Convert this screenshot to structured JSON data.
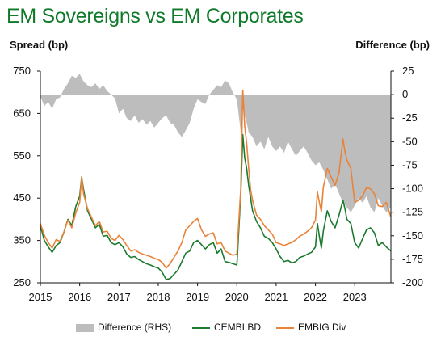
{
  "chart_data": {
    "type": "line",
    "title": "EM Sovereigns vs EM Corporates",
    "ylabel": "Spread (bp)",
    "y2label": "Difference (bp)",
    "ylim": [
      250,
      750
    ],
    "y2lim": [
      -200,
      25
    ],
    "xlim": [
      2015.0,
      2023.92
    ],
    "yticks": [
      250,
      350,
      450,
      550,
      650,
      750
    ],
    "y2ticks": [
      25,
      0,
      -25,
      -50,
      -75,
      -100,
      -125,
      -150,
      -175,
      -200
    ],
    "xticks": [
      "2015",
      "2016",
      "2017",
      "2018",
      "2019",
      "2020",
      "2021",
      "2022",
      "2023"
    ],
    "legend_position": "bottom",
    "series": [
      {
        "name": "Difference (RHS)",
        "kind": "area",
        "axis": "right",
        "color": "#bdbdbd",
        "x": [
          2015.0,
          2015.1,
          2015.2,
          2015.3,
          2015.4,
          2015.5,
          2015.6,
          2015.7,
          2015.8,
          2015.9,
          2016.0,
          2016.1,
          2016.2,
          2016.3,
          2016.4,
          2016.5,
          2016.6,
          2016.7,
          2016.8,
          2016.9,
          2017.0,
          2017.1,
          2017.2,
          2017.3,
          2017.4,
          2017.5,
          2017.6,
          2017.7,
          2017.8,
          2017.9,
          2018.0,
          2018.1,
          2018.2,
          2018.3,
          2018.4,
          2018.5,
          2018.6,
          2018.7,
          2018.8,
          2018.9,
          2019.0,
          2019.1,
          2019.2,
          2019.3,
          2019.4,
          2019.5,
          2019.6,
          2019.7,
          2019.8,
          2019.9,
          2020.0,
          2020.1,
          2020.15,
          2020.25,
          2020.3,
          2020.4,
          2020.5,
          2020.6,
          2020.7,
          2020.8,
          2020.9,
          2021.0,
          2021.1,
          2021.2,
          2021.3,
          2021.4,
          2021.5,
          2021.6,
          2021.7,
          2021.8,
          2021.9,
          2022.0,
          2022.1,
          2022.2,
          2022.3,
          2022.4,
          2022.5,
          2022.6,
          2022.7,
          2022.8,
          2022.9,
          2023.0,
          2023.1,
          2023.2,
          2023.3,
          2023.4,
          2023.5,
          2023.6,
          2023.7,
          2023.8,
          2023.92
        ],
        "values": [
          -2,
          -12,
          -8,
          -15,
          -5,
          -3,
          6,
          12,
          20,
          18,
          22,
          14,
          10,
          8,
          12,
          6,
          10,
          4,
          0,
          -4,
          -20,
          -15,
          -25,
          -28,
          -22,
          -30,
          -26,
          -32,
          -28,
          -35,
          -30,
          -25,
          -22,
          -30,
          -32,
          -40,
          -45,
          -38,
          -30,
          -15,
          -5,
          -8,
          -10,
          0,
          5,
          10,
          8,
          15,
          12,
          2,
          -5,
          -40,
          -15,
          -30,
          -40,
          -45,
          -55,
          -50,
          -58,
          -45,
          -55,
          -60,
          -55,
          -62,
          -50,
          -58,
          -65,
          -60,
          -55,
          -62,
          -70,
          -75,
          -72,
          -80,
          -90,
          -100,
          -95,
          -105,
          -115,
          -120,
          -125,
          -118,
          -110,
          -115,
          -108,
          -120,
          -125,
          -110,
          -118,
          -125,
          -120
        ]
      },
      {
        "name": "CEMBI BD",
        "kind": "line",
        "axis": "left",
        "color": "#1a7a2e",
        "x": [
          2015.0,
          2015.1,
          2015.2,
          2015.3,
          2015.4,
          2015.5,
          2015.6,
          2015.7,
          2015.8,
          2015.9,
          2016.0,
          2016.05,
          2016.1,
          2016.2,
          2016.3,
          2016.4,
          2016.5,
          2016.6,
          2016.7,
          2016.8,
          2016.9,
          2017.0,
          2017.1,
          2017.2,
          2017.3,
          2017.4,
          2017.5,
          2017.6,
          2017.7,
          2017.8,
          2017.9,
          2018.0,
          2018.1,
          2018.2,
          2018.3,
          2018.4,
          2018.5,
          2018.6,
          2018.7,
          2018.8,
          2018.9,
          2019.0,
          2019.1,
          2019.2,
          2019.3,
          2019.4,
          2019.5,
          2019.6,
          2019.7,
          2019.8,
          2019.9,
          2020.0,
          2020.1,
          2020.15,
          2020.2,
          2020.25,
          2020.3,
          2020.35,
          2020.4,
          2020.5,
          2020.6,
          2020.7,
          2020.8,
          2020.9,
          2021.0,
          2021.1,
          2021.2,
          2021.3,
          2021.4,
          2021.5,
          2021.6,
          2021.7,
          2021.8,
          2021.9,
          2022.0,
          2022.05,
          2022.1,
          2022.15,
          2022.2,
          2022.3,
          2022.4,
          2022.5,
          2022.6,
          2022.7,
          2022.75,
          2022.8,
          2022.9,
          2023.0,
          2023.1,
          2023.2,
          2023.3,
          2023.4,
          2023.5,
          2023.6,
          2023.7,
          2023.8,
          2023.92
        ],
        "values": [
          385,
          350,
          335,
          322,
          338,
          345,
          370,
          400,
          385,
          430,
          455,
          500,
          470,
          420,
          400,
          380,
          388,
          360,
          362,
          345,
          340,
          345,
          335,
          318,
          310,
          312,
          305,
          300,
          295,
          292,
          288,
          285,
          275,
          258,
          260,
          270,
          280,
          300,
          320,
          325,
          345,
          350,
          340,
          330,
          340,
          345,
          320,
          330,
          300,
          298,
          295,
          292,
          460,
          600,
          545,
          520,
          480,
          450,
          420,
          395,
          380,
          360,
          355,
          345,
          330,
          312,
          300,
          303,
          297,
          300,
          310,
          313,
          318,
          322,
          335,
          390,
          360,
          332,
          372,
          420,
          395,
          380,
          410,
          445,
          425,
          400,
          390,
          345,
          332,
          355,
          375,
          380,
          368,
          338,
          345,
          335,
          325
        ]
      },
      {
        "name": "EMBIG Div",
        "kind": "line",
        "axis": "left",
        "color": "#e8833a",
        "x": [
          2015.0,
          2015.1,
          2015.2,
          2015.3,
          2015.4,
          2015.5,
          2015.6,
          2015.7,
          2015.8,
          2015.9,
          2016.0,
          2016.05,
          2016.1,
          2016.2,
          2016.3,
          2016.4,
          2016.5,
          2016.6,
          2016.7,
          2016.8,
          2016.9,
          2017.0,
          2017.1,
          2017.2,
          2017.3,
          2017.4,
          2017.5,
          2017.6,
          2017.7,
          2017.8,
          2017.9,
          2018.0,
          2018.1,
          2018.2,
          2018.3,
          2018.4,
          2018.5,
          2018.6,
          2018.7,
          2018.8,
          2018.9,
          2019.0,
          2019.1,
          2019.2,
          2019.3,
          2019.4,
          2019.5,
          2019.6,
          2019.7,
          2019.8,
          2019.9,
          2020.0,
          2020.1,
          2020.15,
          2020.2,
          2020.25,
          2020.3,
          2020.35,
          2020.4,
          2020.5,
          2020.6,
          2020.7,
          2020.8,
          2020.9,
          2021.0,
          2021.1,
          2021.2,
          2021.3,
          2021.4,
          2021.5,
          2021.6,
          2021.7,
          2021.8,
          2021.9,
          2022.0,
          2022.05,
          2022.1,
          2022.15,
          2022.2,
          2022.3,
          2022.4,
          2022.5,
          2022.6,
          2022.7,
          2022.75,
          2022.8,
          2022.9,
          2023.0,
          2023.1,
          2023.2,
          2023.3,
          2023.4,
          2023.5,
          2023.6,
          2023.7,
          2023.8,
          2023.92
        ],
        "values": [
          390,
          362,
          345,
          332,
          352,
          348,
          370,
          398,
          380,
          415,
          440,
          500,
          460,
          425,
          405,
          385,
          395,
          370,
          372,
          355,
          350,
          362,
          352,
          338,
          325,
          328,
          322,
          318,
          315,
          312,
          308,
          305,
          298,
          285,
          295,
          310,
          325,
          345,
          375,
          385,
          395,
          402,
          375,
          360,
          365,
          368,
          342,
          345,
          325,
          320,
          315,
          318,
          472,
          705,
          620,
          580,
          520,
          470,
          445,
          410,
          400,
          385,
          375,
          365,
          345,
          342,
          338,
          342,
          345,
          352,
          360,
          365,
          372,
          380,
          398,
          465,
          440,
          418,
          475,
          520,
          500,
          480,
          510,
          590,
          560,
          540,
          520,
          440,
          445,
          455,
          475,
          472,
          460,
          432,
          430,
          440,
          405
        ]
      }
    ]
  },
  "legend": {
    "items": [
      "Difference (RHS)",
      "CEMBI BD",
      "EMBIG Div"
    ]
  },
  "colors": {
    "title": "#0f7a2a",
    "difference": "#bdbdbd",
    "cembi": "#1a7a2e",
    "embig": "#e8833a"
  }
}
